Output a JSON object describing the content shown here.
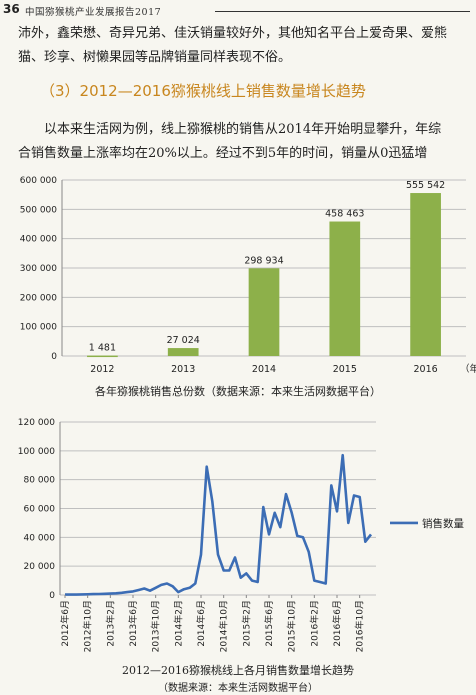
{
  "header": {
    "page_number": "36",
    "title": "中国猕猴桃产业发展报告2017"
  },
  "body": {
    "para1_line1": "沛外，鑫荣懋、奇异兄弟、佳沃销量较好外，其他知名平台上爱奇果、爱熊",
    "para1_line2": "猫、珍享、树懒果园等品牌销量同样表现不俗。",
    "section_heading": "（3）2012—2016猕猴桃线上销售数量增长趋势",
    "para2_line1": "以本来生活网为例，线上猕猴桃的销售从2014年开始明显攀升，年综",
    "para2_line2": "合销售数量上涨率均在20%以上。经过不到5年的时间，销量从0迅猛增"
  },
  "chart_data": [
    {
      "type": "bar",
      "categories": [
        "2012",
        "2013",
        "2014",
        "2015",
        "2016"
      ],
      "values": [
        1481,
        27024,
        298934,
        458463,
        555542
      ],
      "value_labels": [
        "1 481",
        "27 024",
        "298 934",
        "458 463",
        "555 542"
      ],
      "x_unit_label": "（年）",
      "y_ticks": [
        "0",
        "100 000",
        "200 000",
        "300 000",
        "400 000",
        "500 000",
        "600 000"
      ],
      "ylim": [
        0,
        600000
      ],
      "grid": true,
      "bar_color": "#8db04a",
      "caption": "各年猕猴桃销售总份数（数据来源：本来生活网数据平台）"
    },
    {
      "type": "line",
      "series": [
        {
          "name": "销售数量",
          "color": "#3c6db5",
          "values": [
            300,
            300,
            300,
            400,
            500,
            600,
            700,
            800,
            1000,
            1200,
            1500,
            2000,
            2500,
            3500,
            4500,
            3000,
            5000,
            7000,
            8000,
            6000,
            2000,
            4000,
            5000,
            8000,
            28000,
            89000,
            65000,
            28000,
            17000,
            17000,
            26000,
            12000,
            15000,
            10000,
            9000,
            61000,
            42000,
            57000,
            47000,
            70000,
            57000,
            41000,
            40000,
            30000,
            10000,
            9000,
            8000,
            76000,
            58000,
            97000,
            50000,
            69000,
            68000,
            37000,
            42000
          ]
        }
      ],
      "x_labels": [
        "2012年6月",
        "2012年10月",
        "2013年2月",
        "2013年6月",
        "2013年10月",
        "2014年2月",
        "2014年6月",
        "2014年10月",
        "2015年2月",
        "2015年6月",
        "2015年10月",
        "2016年2月",
        "2016年6月",
        "2016年10月"
      ],
      "y_ticks": [
        "0",
        "20 000",
        "40 000",
        "60 000",
        "80 000",
        "100 000",
        "120 000"
      ],
      "ylim": [
        0,
        120000
      ],
      "grid": true,
      "legend_position": "right",
      "caption_line1": "2012—2016猕猴桃线上各月销售数量增长趋势",
      "caption_line2": "（数据来源：本来生活网数据平台）"
    }
  ]
}
